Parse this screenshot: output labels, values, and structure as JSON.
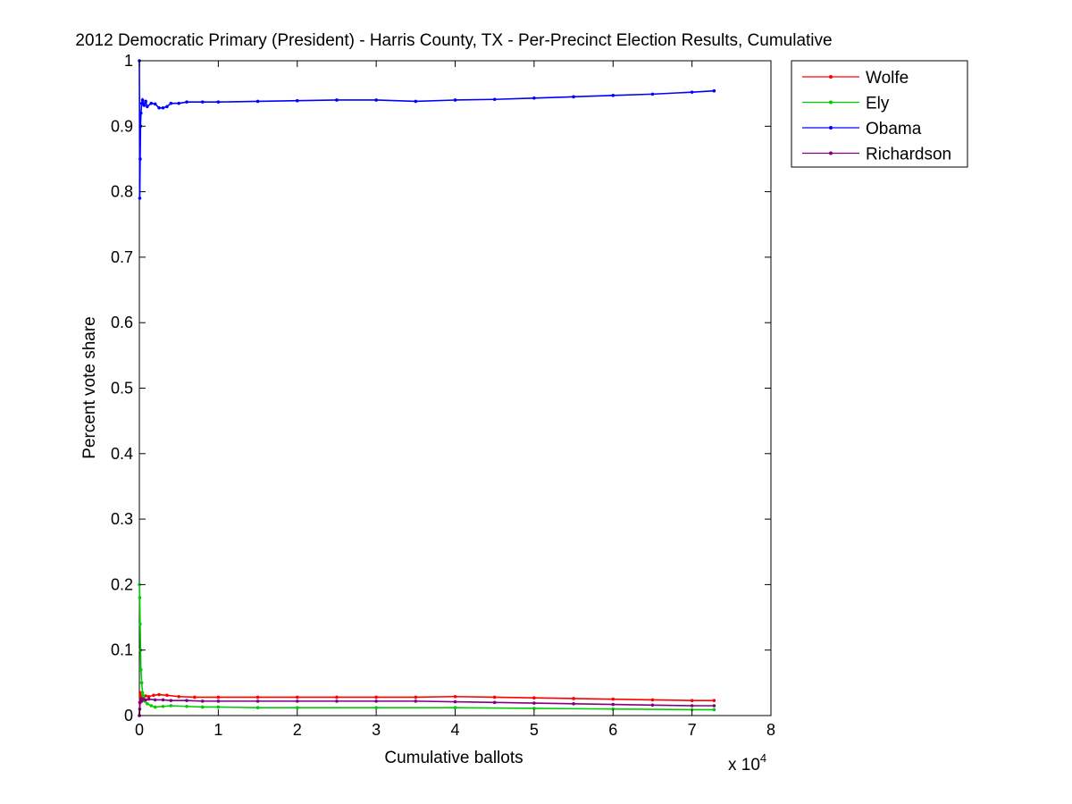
{
  "chart_data": {
    "type": "line",
    "title": "2012 Democratic Primary (President) - Harris County, TX - Per-Precinct Election Results, Cumulative",
    "xlabel": "Cumulative ballots",
    "ylabel": "Percent vote share",
    "x_exponent_label": "x 10",
    "x_exponent_power": "4",
    "xlim": [
      0,
      80000
    ],
    "ylim": [
      0,
      1
    ],
    "x_ticks": [
      0,
      10000,
      20000,
      30000,
      40000,
      50000,
      60000,
      70000,
      80000
    ],
    "x_tick_labels": [
      "0",
      "1",
      "2",
      "3",
      "4",
      "5",
      "6",
      "7",
      "8"
    ],
    "y_ticks": [
      0,
      0.1,
      0.2,
      0.3,
      0.4,
      0.5,
      0.6,
      0.7,
      0.8,
      0.9,
      1
    ],
    "y_tick_labels": [
      "0",
      "0.1",
      "0.2",
      "0.3",
      "0.4",
      "0.5",
      "0.6",
      "0.7",
      "0.8",
      "0.9",
      "1"
    ],
    "grid": false,
    "legend_position": "top-right",
    "series": [
      {
        "name": "Wolfe",
        "color": "#ff0000",
        "x": [
          0,
          50,
          100,
          200,
          300,
          500,
          800,
          1200,
          1800,
          2500,
          3500,
          5000,
          7000,
          10000,
          15000,
          20000,
          25000,
          30000,
          35000,
          40000,
          45000,
          50000,
          55000,
          60000,
          65000,
          70000,
          72800
        ],
        "y": [
          0.0,
          0.02,
          0.035,
          0.03,
          0.025,
          0.028,
          0.03,
          0.029,
          0.031,
          0.032,
          0.031,
          0.029,
          0.028,
          0.028,
          0.028,
          0.028,
          0.028,
          0.028,
          0.028,
          0.029,
          0.028,
          0.027,
          0.026,
          0.025,
          0.024,
          0.023,
          0.023
        ]
      },
      {
        "name": "Ely",
        "color": "#00cc00",
        "x": [
          0,
          50,
          100,
          150,
          200,
          300,
          400,
          500,
          700,
          1000,
          1500,
          2000,
          3000,
          4000,
          6000,
          8000,
          10000,
          15000,
          20000,
          30000,
          40000,
          50000,
          60000,
          70000,
          72800
        ],
        "y": [
          0.2,
          0.18,
          0.14,
          0.1,
          0.07,
          0.05,
          0.035,
          0.03,
          0.022,
          0.018,
          0.015,
          0.013,
          0.014,
          0.015,
          0.014,
          0.013,
          0.013,
          0.012,
          0.012,
          0.012,
          0.012,
          0.011,
          0.01,
          0.009,
          0.009
        ]
      },
      {
        "name": "Obama",
        "color": "#0000ff",
        "x": [
          0,
          50,
          100,
          150,
          200,
          300,
          400,
          600,
          800,
          1000,
          1500,
          2000,
          2500,
          3000,
          3500,
          4000,
          5000,
          6000,
          8000,
          10000,
          15000,
          20000,
          25000,
          30000,
          35000,
          40000,
          45000,
          50000,
          55000,
          60000,
          65000,
          70000,
          72800
        ],
        "y": [
          1.0,
          0.79,
          0.85,
          0.9,
          0.92,
          0.935,
          0.94,
          0.932,
          0.938,
          0.93,
          0.935,
          0.934,
          0.928,
          0.928,
          0.93,
          0.935,
          0.935,
          0.937,
          0.937,
          0.937,
          0.938,
          0.939,
          0.94,
          0.94,
          0.938,
          0.94,
          0.941,
          0.943,
          0.945,
          0.947,
          0.949,
          0.952,
          0.954
        ]
      },
      {
        "name": "Richardson",
        "color": "#800080",
        "x": [
          0,
          50,
          100,
          200,
          300,
          500,
          800,
          1200,
          2000,
          3000,
          4000,
          6000,
          8000,
          10000,
          15000,
          20000,
          25000,
          30000,
          35000,
          40000,
          45000,
          50000,
          55000,
          60000,
          65000,
          70000,
          72800
        ],
        "y": [
          0.0,
          0.01,
          0.02,
          0.025,
          0.022,
          0.025,
          0.024,
          0.025,
          0.024,
          0.024,
          0.023,
          0.023,
          0.022,
          0.022,
          0.022,
          0.022,
          0.022,
          0.022,
          0.022,
          0.021,
          0.02,
          0.019,
          0.018,
          0.017,
          0.016,
          0.015,
          0.015
        ]
      }
    ]
  }
}
